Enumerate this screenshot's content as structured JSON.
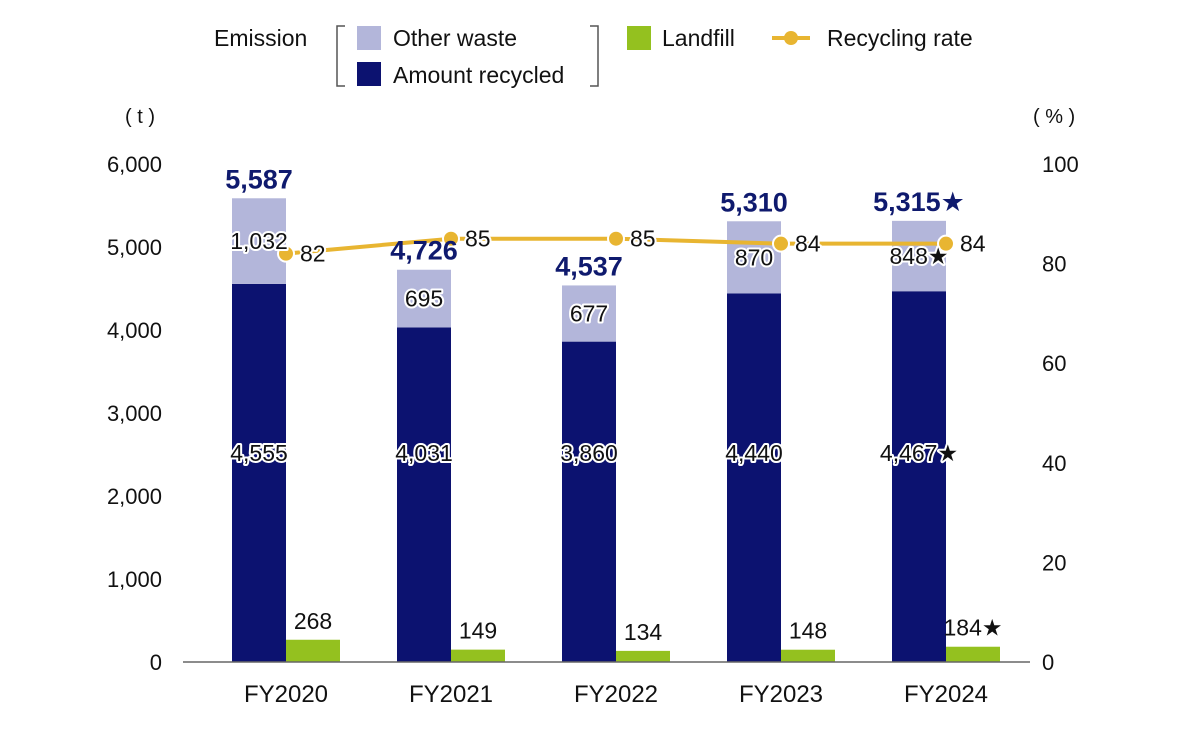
{
  "chart_data": {
    "type": "bar",
    "categories": [
      "FY2020",
      "FY2021",
      "FY2022",
      "FY2023",
      "FY2024"
    ],
    "legend": {
      "group_label": "Emission",
      "other_waste": "Other waste",
      "amount_recycled": "Amount recycled",
      "landfill": "Landfill",
      "recycling_rate": "Recycling rate"
    },
    "y_left": {
      "unit": "( t )",
      "ylim": [
        0,
        6000
      ],
      "ticks": [
        "0",
        "1,000",
        "2,000",
        "3,000",
        "4,000",
        "5,000",
        "6,000"
      ]
    },
    "y_right": {
      "unit": "( % )",
      "ylim": [
        0,
        100
      ],
      "ticks": [
        "0",
        "20",
        "40",
        "60",
        "80",
        "100"
      ]
    },
    "series": [
      {
        "name": "Amount recycled",
        "values": [
          4555,
          4031,
          3860,
          4440,
          4467
        ],
        "labels": [
          "4,555",
          "4,031",
          "3,860",
          "4,440",
          "4,467★"
        ]
      },
      {
        "name": "Other waste",
        "values": [
          1032,
          695,
          677,
          870,
          848
        ],
        "labels": [
          "1,032",
          "695",
          "677",
          "870",
          "848★"
        ]
      },
      {
        "name": "Landfill",
        "values": [
          268,
          149,
          134,
          148,
          184
        ],
        "labels": [
          "268",
          "149",
          "134",
          "148",
          "184★"
        ]
      },
      {
        "name": "Recycling rate",
        "axis": "right",
        "values": [
          82,
          85,
          85,
          84,
          84
        ],
        "labels": [
          "82",
          "85",
          "85",
          "84",
          "84"
        ]
      }
    ],
    "totals": {
      "values": [
        5587,
        4726,
        4537,
        5310,
        5315
      ],
      "labels": [
        "5,587",
        "4,726",
        "4,537",
        "5,310",
        "5,315★"
      ]
    },
    "colors": {
      "amount_recycled": "#0c1270",
      "other_waste": "#b3b6da",
      "landfill": "#94c11f",
      "recycling_rate": "#e8b531",
      "totals_text": "#0f1a6e"
    },
    "grid": false,
    "legend_position": "top"
  }
}
